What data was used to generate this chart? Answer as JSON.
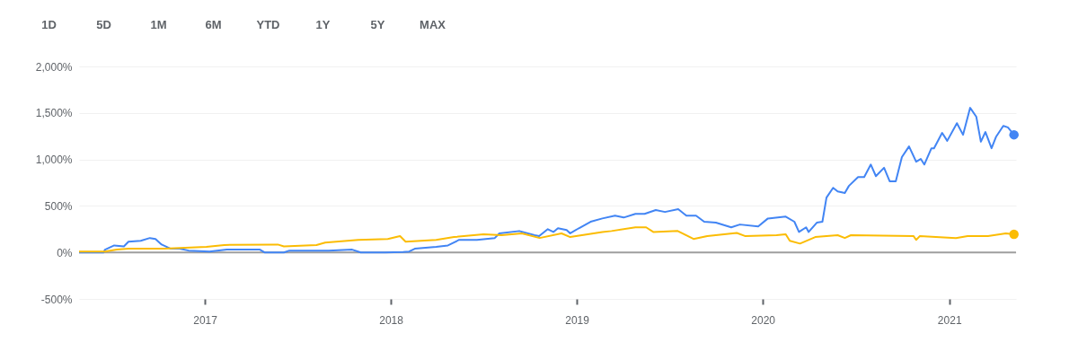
{
  "chart_data": {
    "type": "line",
    "annotations": [
      "1D",
      "5D",
      "1M",
      "6M",
      "YTD",
      "1Y",
      "5Y",
      "MAX"
    ],
    "xlim": [
      "2016-04-29",
      "2021-05-12"
    ],
    "xticks": [
      {
        "value": "2017-01-01",
        "label": "2017"
      },
      {
        "value": "2018-01-01",
        "label": "2018"
      },
      {
        "value": "2019-01-01",
        "label": "2019"
      },
      {
        "value": "2020-01-01",
        "label": "2020"
      },
      {
        "value": "2021-01-01",
        "label": "2021"
      }
    ],
    "ylim": [
      -500,
      2000
    ],
    "yticks": [
      {
        "value": -500,
        "label": "-500%"
      },
      {
        "value": 0,
        "label": "0%"
      },
      {
        "value": 500,
        "label": "500%"
      },
      {
        "value": 1000,
        "label": "1,000%"
      },
      {
        "value": 1500,
        "label": "1,500%"
      },
      {
        "value": 2000,
        "label": "2,000%"
      }
    ],
    "grid": "y",
    "line_style": "solid",
    "ref_lines": [
      {
        "axis": "y",
        "value": 0,
        "color": "#9e9e9e"
      }
    ],
    "series": [
      {
        "color": "#4285f4",
        "x": [
          "2016-04-29",
          "2016-06-16",
          "2016-06-19",
          "2016-07-07",
          "2016-07-26",
          "2016-08-04",
          "2016-08-28",
          "2016-09-15",
          "2016-09-26",
          "2016-10-08",
          "2016-10-26",
          "2016-11-12",
          "2016-11-30",
          "2017-01-10",
          "2017-02-13",
          "2017-04-19",
          "2017-04-28",
          "2017-06-05",
          "2017-06-16",
          "2017-09-01",
          "2017-10-17",
          "2017-11-03",
          "2017-12-21",
          "2018-01-25",
          "2018-02-06",
          "2018-02-17",
          "2018-03-31",
          "2018-04-23",
          "2018-05-15",
          "2018-06-19",
          "2018-07-24",
          "2018-08-02",
          "2018-09-10",
          "2018-10-10",
          "2018-10-19",
          "2018-11-05",
          "2018-11-16",
          "2018-11-25",
          "2018-12-12",
          "2018-12-19",
          "2019-01-05",
          "2019-01-28",
          "2019-02-20",
          "2019-03-17",
          "2019-04-03",
          "2019-04-26",
          "2019-05-14",
          "2019-06-05",
          "2019-06-23",
          "2019-07-19",
          "2019-08-04",
          "2019-08-23",
          "2019-09-08",
          "2019-10-01",
          "2019-10-31",
          "2019-11-17",
          "2019-12-23",
          "2020-01-11",
          "2020-02-15",
          "2020-03-03",
          "2020-03-12",
          "2020-03-26",
          "2020-03-31",
          "2020-04-16",
          "2020-04-27",
          "2020-05-05",
          "2020-05-18",
          "2020-05-27",
          "2020-06-10",
          "2020-06-18",
          "2020-07-06",
          "2020-07-18",
          "2020-07-31",
          "2020-08-10",
          "2020-08-26",
          "2020-09-06",
          "2020-09-18",
          "2020-09-30",
          "2020-10-14",
          "2020-10-28",
          "2020-11-06",
          "2020-11-13",
          "2020-11-27",
          "2020-12-02",
          "2020-12-18",
          "2020-12-28",
          "2021-01-16",
          "2021-01-28",
          "2021-02-11",
          "2021-02-23",
          "2021-03-04",
          "2021-03-13",
          "2021-03-25",
          "2021-04-03",
          "2021-04-17",
          "2021-04-26",
          "2021-05-08"
        ],
        "values": [
          0,
          0,
          30,
          75,
          65,
          115,
          125,
          155,
          145,
          85,
          40,
          40,
          20,
          10,
          30,
          30,
          0,
          0,
          20,
          20,
          30,
          0,
          0,
          5,
          10,
          40,
          60,
          75,
          135,
          135,
          155,
          205,
          230,
          185,
          175,
          250,
          220,
          260,
          240,
          205,
          260,
          330,
          365,
          395,
          375,
          415,
          415,
          455,
          435,
          465,
          395,
          395,
          330,
          320,
          270,
          300,
          280,
          365,
          385,
          330,
          220,
          270,
          220,
          320,
          330,
          590,
          695,
          655,
          640,
          715,
          810,
          810,
          945,
          820,
          910,
          765,
          765,
          1025,
          1140,
          975,
          1005,
          945,
          1120,
          1120,
          1285,
          1200,
          1390,
          1265,
          1555,
          1460,
          1190,
          1295,
          1120,
          1245,
          1360,
          1345,
          1265
        ]
      },
      {
        "color": "#fbbc04",
        "x": [
          "2016-04-29",
          "2016-06-19",
          "2016-07-12",
          "2016-08-04",
          "2016-10-13",
          "2017-01-04",
          "2017-02-08",
          "2017-05-24",
          "2017-06-05",
          "2017-08-08",
          "2017-08-25",
          "2017-10-29",
          "2017-12-26",
          "2018-01-19",
          "2018-01-30",
          "2018-03-31",
          "2018-05-05",
          "2018-07-02",
          "2018-08-06",
          "2018-09-15",
          "2018-10-20",
          "2018-12-02",
          "2018-12-19",
          "2019-02-20",
          "2019-03-10",
          "2019-04-26",
          "2019-05-17",
          "2019-05-31",
          "2019-07-18",
          "2019-08-18",
          "2019-09-14",
          "2019-11-11",
          "2019-11-28",
          "2020-01-28",
          "2020-02-15",
          "2020-02-23",
          "2020-03-14",
          "2020-04-13",
          "2020-05-27",
          "2020-06-10",
          "2020-06-22",
          "2020-10-23",
          "2020-10-28",
          "2020-11-04",
          "2021-01-14",
          "2021-02-06",
          "2021-03-18",
          "2021-04-22",
          "2021-05-08"
        ],
        "values": [
          10,
          10,
          30,
          40,
          40,
          60,
          80,
          85,
          65,
          80,
          105,
          135,
          145,
          175,
          115,
          135,
          165,
          195,
          185,
          205,
          155,
          205,
          165,
          220,
          230,
          270,
          270,
          220,
          230,
          145,
          175,
          210,
          175,
          185,
          195,
          125,
          95,
          165,
          185,
          155,
          185,
          175,
          135,
          175,
          155,
          175,
          175,
          205,
          195
        ]
      },
      {
        "type": "scatter",
        "color": "#4285f4",
        "x": [
          "2021-05-08"
        ],
        "values": [
          1265
        ],
        "marker": "circle"
      },
      {
        "type": "scatter",
        "color": "#fbbc04",
        "x": [
          "2021-05-08"
        ],
        "values": [
          195
        ],
        "marker": "circle"
      }
    ]
  }
}
